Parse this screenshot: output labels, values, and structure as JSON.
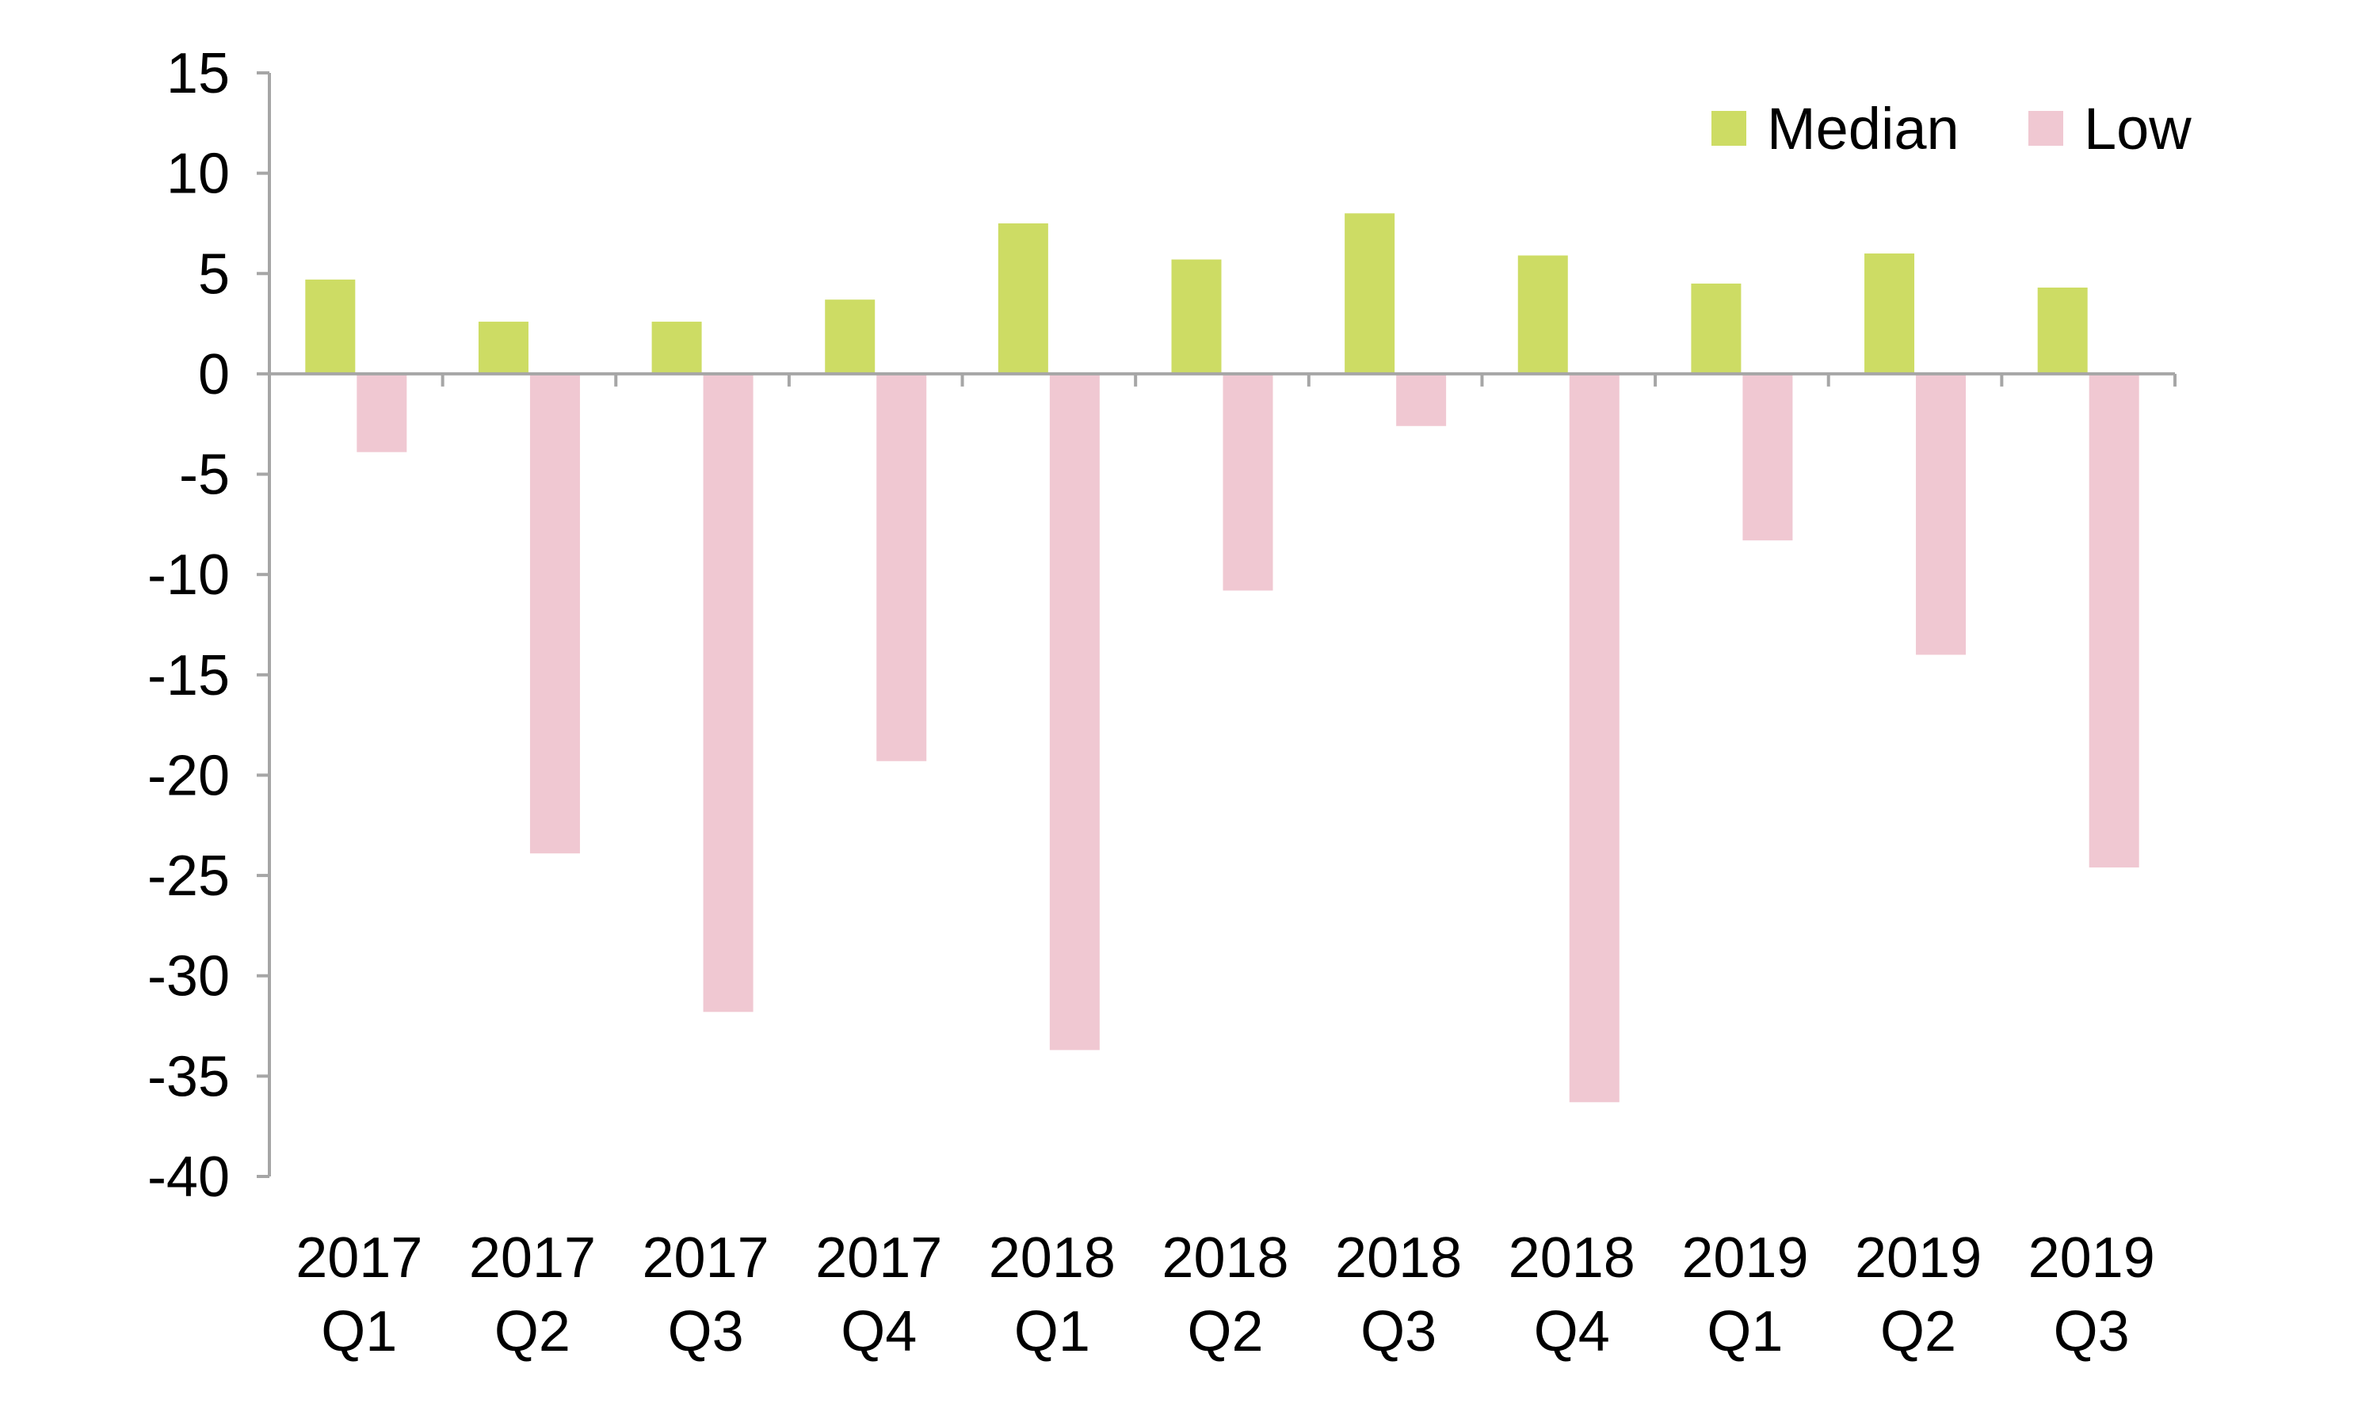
{
  "chart_data": {
    "type": "bar",
    "title": "",
    "xlabel": "",
    "ylabel": "",
    "ylim": [
      -40,
      15
    ],
    "yticks": [
      15,
      10,
      5,
      0,
      -5,
      -10,
      -15,
      -20,
      -25,
      -30,
      -35,
      -40
    ],
    "grid": false,
    "legend_position": "top-right",
    "categories": [
      [
        "2017",
        "Q1"
      ],
      [
        "2017",
        "Q2"
      ],
      [
        "2017",
        "Q3"
      ],
      [
        "2017",
        "Q4"
      ],
      [
        "2018",
        "Q1"
      ],
      [
        "2018",
        "Q2"
      ],
      [
        "2018",
        "Q3"
      ],
      [
        "2018",
        "Q4"
      ],
      [
        "2019",
        "Q1"
      ],
      [
        "2019",
        "Q2"
      ],
      [
        "2019",
        "Q3"
      ]
    ],
    "series": [
      {
        "name": "Median",
        "color": "#cddc64",
        "values": [
          4.7,
          2.6,
          2.6,
          3.7,
          7.5,
          5.7,
          8.0,
          5.9,
          4.5,
          6.0,
          4.3
        ]
      },
      {
        "name": "Low",
        "color": "#f0c8d2",
        "values": [
          -3.9,
          -23.9,
          -31.8,
          -19.3,
          -33.7,
          -10.8,
          -2.6,
          -36.3,
          -8.3,
          -14.0,
          -24.6
        ]
      }
    ],
    "axis_color": "#a6a6a6"
  }
}
